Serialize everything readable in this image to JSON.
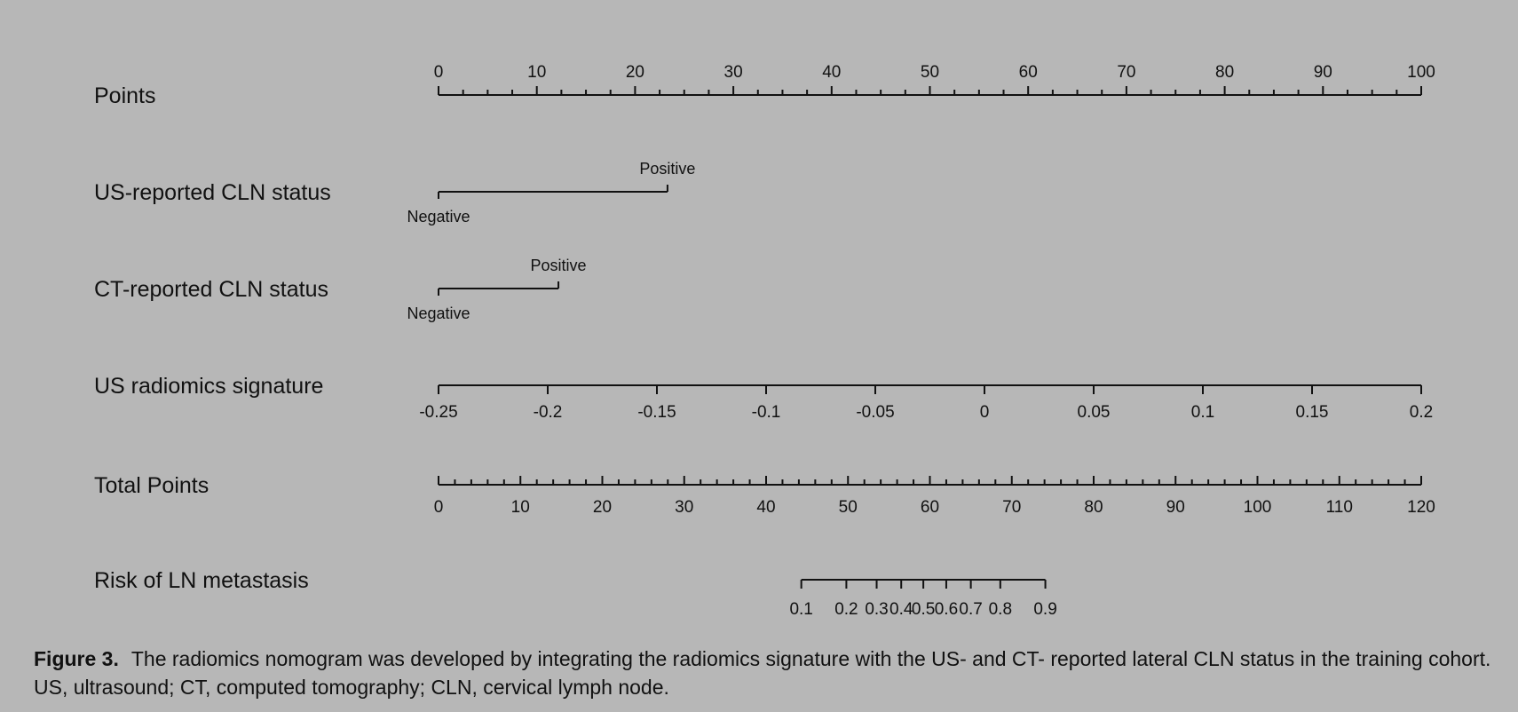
{
  "chart_data": {
    "type": "nomogram",
    "rows": [
      {
        "label": "Points",
        "kind": "scale",
        "ticks": [
          0,
          10,
          20,
          30,
          40,
          50,
          60,
          70,
          80,
          90,
          100
        ],
        "tick_labels": [
          "0",
          "10",
          "20",
          "30",
          "40",
          "50",
          "60",
          "70",
          "80",
          "90",
          "100"
        ],
        "minor_step": 2.5,
        "labels_above": true
      },
      {
        "label": "US-reported  CLN  status",
        "kind": "categorical",
        "levels": [
          {
            "name": "Negative",
            "points": 0,
            "label_pos": "below"
          },
          {
            "name": "Positive",
            "points": 23.3,
            "label_pos": "above"
          }
        ]
      },
      {
        "label": "CT-reported  CLN  status",
        "kind": "categorical",
        "levels": [
          {
            "name": "Negative",
            "points": 0,
            "label_pos": "below"
          },
          {
            "name": "Positive",
            "points": 12.2,
            "label_pos": "above"
          }
        ]
      },
      {
        "label": "US  radiomics  signature",
        "kind": "continuous",
        "ticks": [
          -0.25,
          -0.2,
          -0.15,
          -0.1,
          -0.05,
          0,
          0.05,
          0.1,
          0.15,
          0.2
        ],
        "tick_labels": [
          "-0.25",
          "-0.2",
          "-0.15",
          "-0.1",
          "-0.05",
          "0",
          "0.05",
          "0.1",
          "0.15",
          "0.2"
        ],
        "points_range": [
          0,
          100
        ]
      },
      {
        "label": "Total Points",
        "kind": "total",
        "ticks": [
          0,
          10,
          20,
          30,
          40,
          50,
          60,
          70,
          80,
          90,
          100,
          110,
          120
        ],
        "tick_labels": [
          "0",
          "10",
          "20",
          "30",
          "40",
          "50",
          "60",
          "70",
          "80",
          "90",
          "100",
          "110",
          "120"
        ],
        "minor_step": 2,
        "range": [
          0,
          120
        ]
      },
      {
        "label": "Risk of LN metastasis",
        "kind": "risk",
        "ticks": [
          {
            "label": "0.1",
            "total_points": 44.3
          },
          {
            "label": "0.2",
            "total_points": 49.8
          },
          {
            "label": "0.3",
            "total_points": 53.5
          },
          {
            "label": "0.4",
            "total_points": 56.5
          },
          {
            "label": "0.5",
            "total_points": 59.2
          },
          {
            "label": "0.6",
            "total_points": 62
          },
          {
            "label": "0.7",
            "total_points": 65
          },
          {
            "label": "0.8",
            "total_points": 68.6
          },
          {
            "label": "0.9",
            "total_points": 74.1
          }
        ]
      }
    ]
  },
  "caption": {
    "label": "Figure 3.",
    "text": "The radiomics nomogram was developed by integrating the radiomics signature with the US- and CT- reported lateral CLN status in the training cohort. US, ultrasound; CT, computed tomography; CLN, cervical lymph node."
  }
}
